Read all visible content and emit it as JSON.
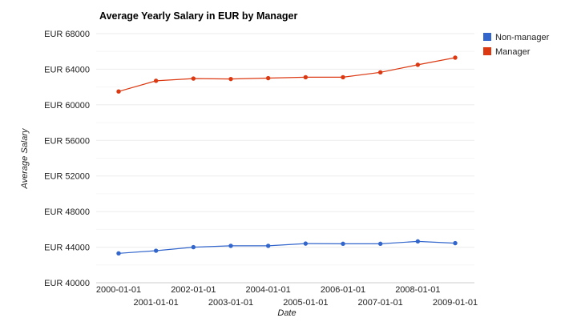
{
  "chart_data": {
    "type": "line",
    "title": "Average Yearly Salary in EUR by Manager",
    "xlabel": "Date",
    "ylabel": "Average Salary",
    "x": [
      "2000-01-01",
      "2001-01-01",
      "2002-01-01",
      "2003-01-01",
      "2004-01-01",
      "2005-01-01",
      "2006-01-01",
      "2007-01-01",
      "2008-01-01",
      "2009-01-01"
    ],
    "x_tick_labels": [
      "2000-01-01",
      "2001-01-01",
      "2002-01-01",
      "2003-01-01",
      "2004-01-01",
      "2005-01-01",
      "2006-01-01",
      "2007-01-01",
      "2008-01-01",
      "2009-01-01"
    ],
    "ylim": [
      40000,
      68000
    ],
    "y_ticks": [
      40000,
      44000,
      48000,
      52000,
      56000,
      60000,
      64000,
      68000
    ],
    "y_tick_prefix": "EUR ",
    "grid": true,
    "legend_position": "right",
    "series": [
      {
        "name": "Non-manager",
        "color": "#3366cc",
        "values": [
          43300,
          43600,
          44000,
          44150,
          44150,
          44400,
          44380,
          44380,
          44650,
          44450
        ]
      },
      {
        "name": "Manager",
        "color": "#dc3912",
        "values": [
          61500,
          62700,
          62950,
          62900,
          63000,
          63100,
          63100,
          63650,
          64500,
          65300
        ]
      }
    ]
  }
}
